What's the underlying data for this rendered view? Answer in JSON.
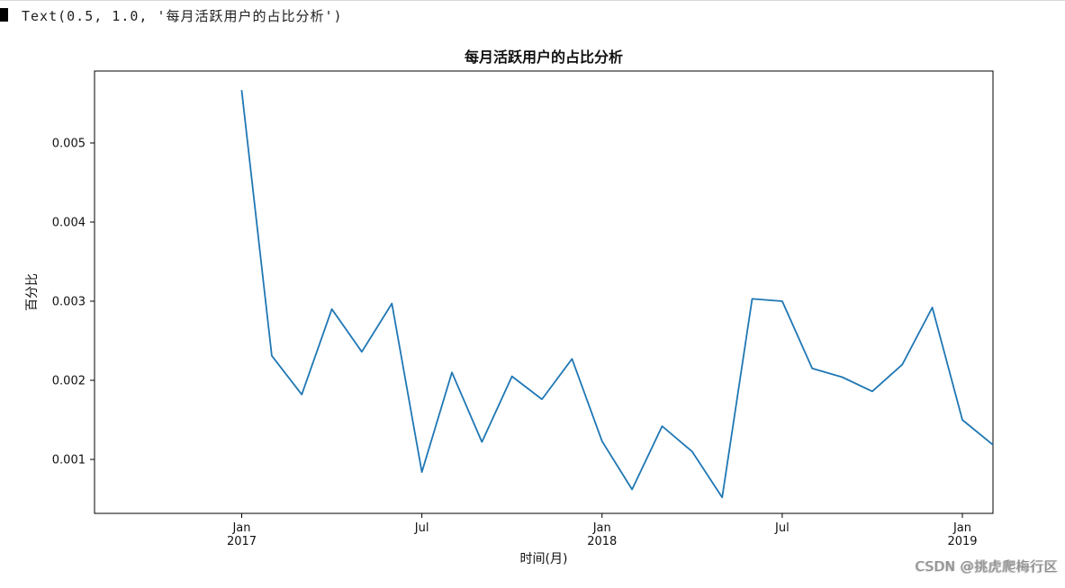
{
  "page": {
    "background": "#ffffff"
  },
  "output_line": {
    "text": "Text(0.5, 1.0, '每月活跃用户的占比分析')"
  },
  "watermark": {
    "text": "CSDN @挑虎爬梅行区"
  },
  "chart_data": {
    "type": "line",
    "title": "每月活跃用户的占比分析",
    "xlabel": "时间(月)",
    "ylabel": "百分比",
    "line_color": "#1f77b4",
    "axis_color": "#000000",
    "legend_position": "none",
    "grid": false,
    "ylim": [
      0.00025,
      0.00592
    ],
    "y_ticks": [
      0.001,
      0.002,
      0.003,
      0.004,
      0.005
    ],
    "x_ticks": [
      {
        "index": 0,
        "line1": "Jan",
        "line2": "2017"
      },
      {
        "index": 6,
        "line1": "Jul",
        "line2": ""
      },
      {
        "index": 12,
        "line1": "Jan",
        "line2": "2018"
      },
      {
        "index": 18,
        "line1": "Jul",
        "line2": ""
      },
      {
        "index": 24,
        "line1": "Jan",
        "line2": "2019"
      }
    ],
    "months": [
      "2017-01",
      "2017-02",
      "2017-03",
      "2017-04",
      "2017-05",
      "2017-06",
      "2017-07",
      "2017-08",
      "2017-09",
      "2017-10",
      "2017-11",
      "2017-12",
      "2018-01",
      "2018-02",
      "2018-03",
      "2018-04",
      "2018-05",
      "2018-06",
      "2018-07",
      "2018-08",
      "2018-09",
      "2018-10",
      "2018-11",
      "2018-12",
      "2019-01",
      "2019-02"
    ],
    "values": [
      0.00566,
      0.00231,
      0.00182,
      0.0029,
      0.00236,
      0.00297,
      0.00084,
      0.0021,
      0.00122,
      0.00205,
      0.00176,
      0.00227,
      0.00123,
      0.00062,
      0.00142,
      0.0011,
      0.00052,
      0.00303,
      0.003,
      0.00215,
      0.00204,
      0.00186,
      0.0022,
      0.00292,
      0.0015,
      0.00119
    ]
  }
}
